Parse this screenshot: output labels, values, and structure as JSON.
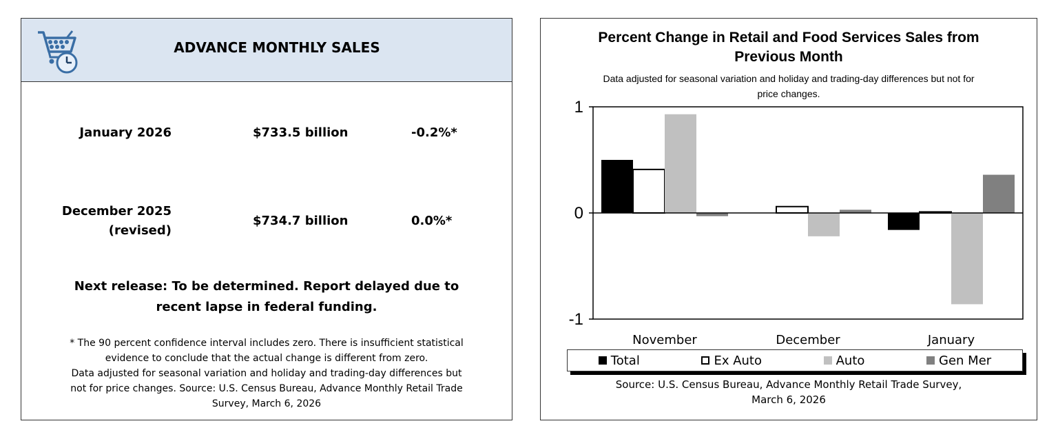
{
  "left": {
    "title": "ADVANCE MONTHLY SALES",
    "rows": [
      {
        "label_line1": "January 2026",
        "label_line2": "",
        "amount": "$733.5 billion",
        "pct": "-0.2%*"
      },
      {
        "label_line1": "December 2025",
        "label_line2": "(revised)",
        "amount": "$734.7 billion",
        "pct": "0.0%*"
      }
    ],
    "next_release_line1": "Next release: To be determined. Report delayed due to",
    "next_release_line2": "recent lapse in federal funding.",
    "footnote_line1": "* The 90 percent confidence interval includes zero. There is insufficient statistical",
    "footnote_line2": "evidence to conclude that the actual change is different from zero.",
    "footnote_line3": "Data adjusted for seasonal variation and holiday and trading-day differences but",
    "footnote_line4": "not for price changes. Source: U.S. Census Bureau, Advance Monthly Retail Trade",
    "footnote_line5": "Survey, March 6, 2026"
  },
  "colors": {
    "header_bg": "#dbe5f1",
    "total": "#000000",
    "ex_auto": "#ffffff",
    "auto": "#c0c0c0",
    "gen_mer": "#808080"
  },
  "chart_data": {
    "type": "bar",
    "title_line1": "Percent Change in Retail and Food Services Sales from",
    "title_line2": "Previous Month",
    "subtitle_line1": "Data adjusted for seasonal variation and holiday and trading-day differences but not for",
    "subtitle_line2": "price changes.",
    "categories": [
      "November",
      "December",
      "January"
    ],
    "series": [
      {
        "name": "Total",
        "values": [
          0.5,
          0.0,
          -0.16
        ]
      },
      {
        "name": "Ex Auto",
        "values": [
          0.41,
          0.06,
          0.01
        ]
      },
      {
        "name": "Auto",
        "values": [
          0.93,
          -0.22,
          -0.86
        ]
      },
      {
        "name": "Gen Mer",
        "values": [
          -0.03,
          0.03,
          0.36
        ]
      }
    ],
    "ylim": [
      -1,
      1
    ],
    "yticks": [
      "1",
      "0",
      "-1"
    ],
    "ytick_values": [
      1,
      0,
      -1
    ],
    "source_line1": "Source: U.S. Census Bureau, Advance Monthly Retail Trade Survey,",
    "source_line2": "March 6, 2026"
  }
}
